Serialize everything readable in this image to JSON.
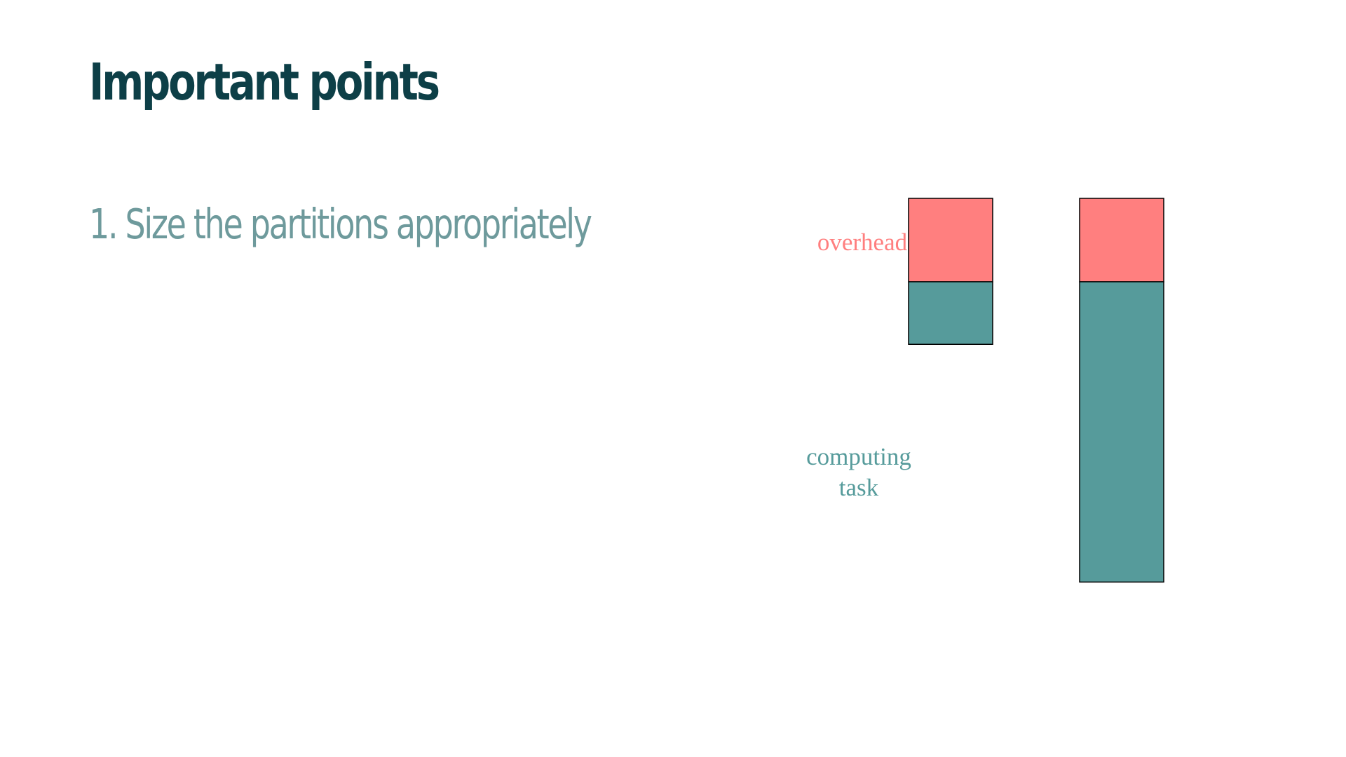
{
  "slide": {
    "title": "Important points",
    "points": [
      "1. Size the partitions appropriately"
    ]
  },
  "diagram": {
    "overhead_label": "overhead",
    "computing_label_line1": "computing",
    "computing_label_line2": "task",
    "bars": [
      {
        "overhead": 1,
        "computing": 0.75
      },
      {
        "overhead": 1,
        "computing": 3.6
      }
    ]
  },
  "colors": {
    "title": "#0d3f47",
    "point": "#6e9a9c",
    "overhead": "#ff7f7f",
    "computing": "#569b9b",
    "outline": "#000000"
  }
}
